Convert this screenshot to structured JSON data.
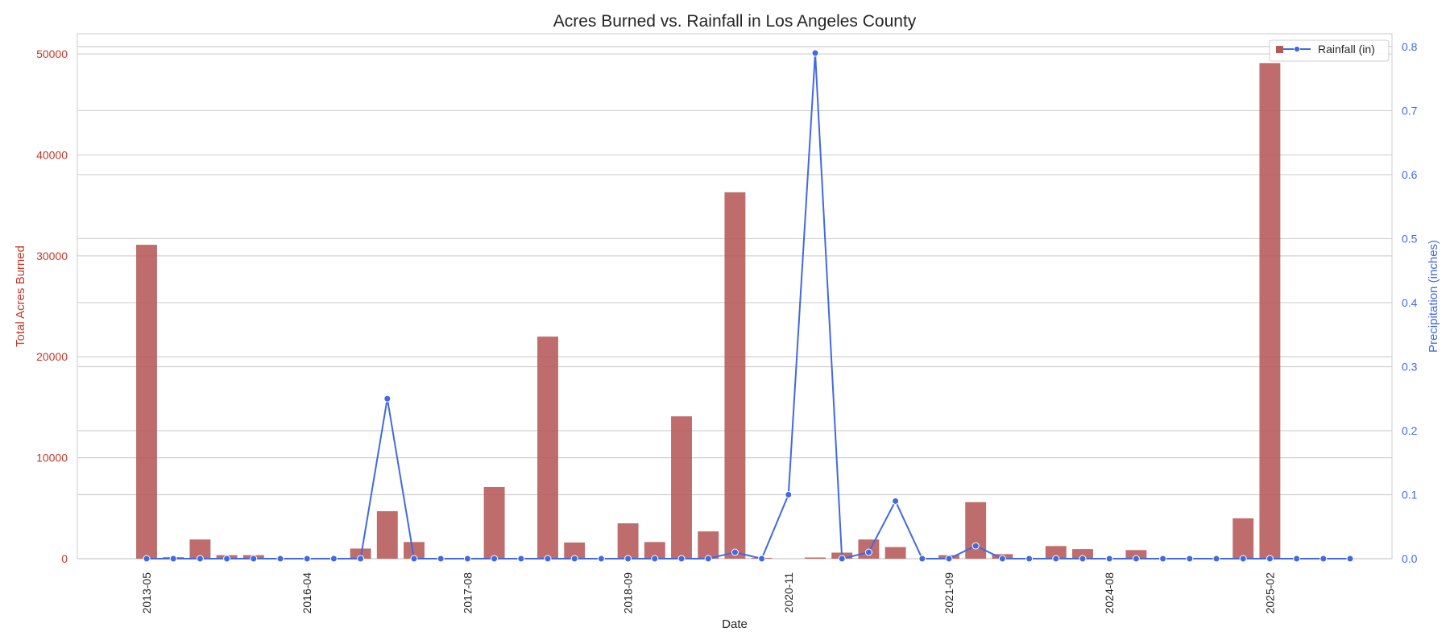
{
  "chart_data": {
    "type": "bar",
    "title": "Acres Burned vs. Rainfall in Los Angeles County",
    "xlabel": "Date",
    "ylabel_left": "Total Acres Burned",
    "ylabel_right": "Precipitation (inches)",
    "ylim_left": [
      0,
      52000
    ],
    "ylim_right": [
      0,
      0.82
    ],
    "yticks_left": [
      0,
      10000,
      20000,
      30000,
      40000,
      50000
    ],
    "yticks_right": [
      0.0,
      0.1,
      0.2,
      0.3,
      0.4,
      0.5,
      0.6,
      0.7,
      0.8
    ],
    "grid": true,
    "legend_position": "top-right",
    "x_tick_labels": [
      {
        "index": 0,
        "label": "2013-05"
      },
      {
        "index": 6,
        "label": "2016-04"
      },
      {
        "index": 12,
        "label": "2017-08"
      },
      {
        "index": 18,
        "label": "2018-09"
      },
      {
        "index": 24,
        "label": "2020-11"
      },
      {
        "index": 30,
        "label": "2021-09"
      },
      {
        "index": 36,
        "label": "2024-08"
      },
      {
        "index": 42,
        "label": "2025-02"
      }
    ],
    "series": [
      {
        "kind": "bar",
        "axis": "left",
        "color": "#b55858",
        "values": [
          31100,
          150,
          1900,
          350,
          350,
          80,
          0,
          0,
          1000,
          4700,
          1650,
          0,
          0,
          7100,
          0,
          22000,
          1600,
          0,
          3500,
          1650,
          14100,
          2700,
          36300,
          80,
          0,
          120,
          600,
          1900,
          1150,
          0,
          350,
          5600,
          450,
          0,
          1250,
          950,
          0,
          850,
          0,
          0,
          0,
          4000,
          49100,
          0,
          0,
          0
        ]
      },
      {
        "kind": "line",
        "axis": "right",
        "name": "Rainfall (in)",
        "color": "#4169e1",
        "values": [
          0,
          0,
          0,
          0,
          0,
          0,
          0,
          0,
          0,
          0.25,
          0,
          0,
          0,
          0,
          0,
          0,
          0,
          0,
          0,
          0,
          0,
          0,
          0.01,
          0,
          0.1,
          0.79,
          0,
          0.01,
          0.09,
          0,
          0,
          0.02,
          0,
          0,
          0,
          0,
          0,
          0,
          0,
          0,
          0,
          0,
          0,
          0,
          0,
          0
        ]
      }
    ]
  }
}
